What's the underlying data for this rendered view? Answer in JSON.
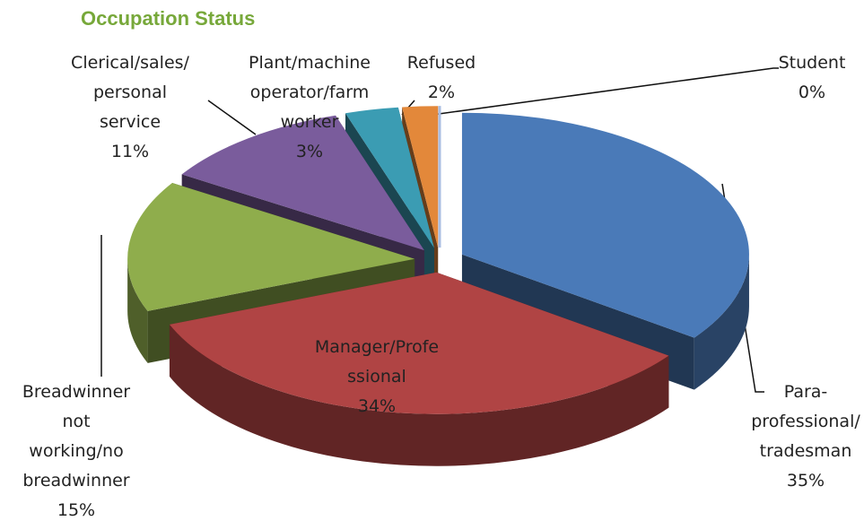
{
  "chart_data": {
    "type": "pie",
    "title": "Occupation Status",
    "categories": [
      "Para-\nprofessional/\ntradesman",
      "Manager/Profe\nssional",
      "Breadwinner\nnot\nworking/no\nbreadwinner",
      "Clerical/sales/\npersonal\nservice",
      "Plant/machine\noperator/farm\nworker",
      "Refused",
      "Student"
    ],
    "values": [
      35,
      34,
      15,
      11,
      3,
      2,
      0
    ],
    "value_labels": [
      "35%",
      "34%",
      "15%",
      "11%",
      "3%",
      "2%",
      "0%"
    ],
    "colors": [
      "#4a7ab8",
      "#b04444",
      "#8fad4c",
      "#7a5c9c",
      "#3b9cb3",
      "#e3883a",
      "#a9bee3"
    ]
  }
}
